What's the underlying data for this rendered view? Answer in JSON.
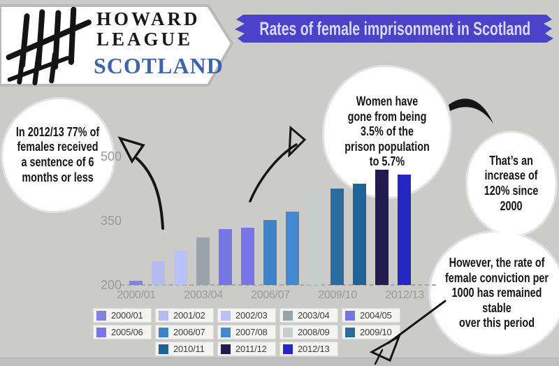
{
  "logo": {
    "org_line1": "HOWARD",
    "org_line2": "LEAGUE",
    "org_line3": "SCOTLAND"
  },
  "banner": {
    "title": "Rates of female imprisonment in Scotland"
  },
  "callouts": {
    "sentence": "In 2012/13 77% of\nfemales received\na sentence of 6\nmonths or less",
    "population": "Women have\ngone from being\n3.5% of the\nprison population\nto 5.7%",
    "increase": "That’s an\nincrease of\n120% since\n2000",
    "conviction": "However, the rate of\nfemale conviction per\n1000 has remained stable\nover this period"
  },
  "colors": {
    "background": "#cbcbca",
    "banner_bg": "#4a43ca",
    "banner_text": "#d9d8f0",
    "scotland_blue": "#3f63ad",
    "axis_text": "#9a9a9a",
    "legend_text": "#3c3c3c"
  },
  "chart_data": {
    "type": "bar",
    "title": "Rates of female imprisonment in Scotland",
    "categories": [
      "2000/01",
      "2001/02",
      "2002/03",
      "2003/04",
      "2004/05",
      "2005/06",
      "2006/07",
      "2007/08",
      "2008/09",
      "2009/10",
      "2010/11",
      "2011/12",
      "2012/13"
    ],
    "values": [
      210,
      255,
      280,
      311,
      330,
      333,
      352,
      372,
      412,
      425,
      437,
      469,
      458
    ],
    "bar_colors": [
      "#7f83de",
      "#b5baf1",
      "#bac0f8",
      "#99a3a9",
      "#7477e3",
      "#7a75e6",
      "#3d83c7",
      "#4389d0",
      "#c6cdcd",
      "#2b6b9e",
      "#1f6396",
      "#221b4f",
      "#2527c4"
    ],
    "xlabel": "",
    "ylabel": "",
    "ylim": [
      200,
      500
    ],
    "yticks": [
      200,
      350,
      500
    ],
    "xticks_shown": [
      "2000/01",
      "2003/04",
      "2006/07",
      "2009/10",
      "2012/13"
    ],
    "grid": false,
    "baseline_style": "dashed",
    "legend_position": "bottom"
  }
}
